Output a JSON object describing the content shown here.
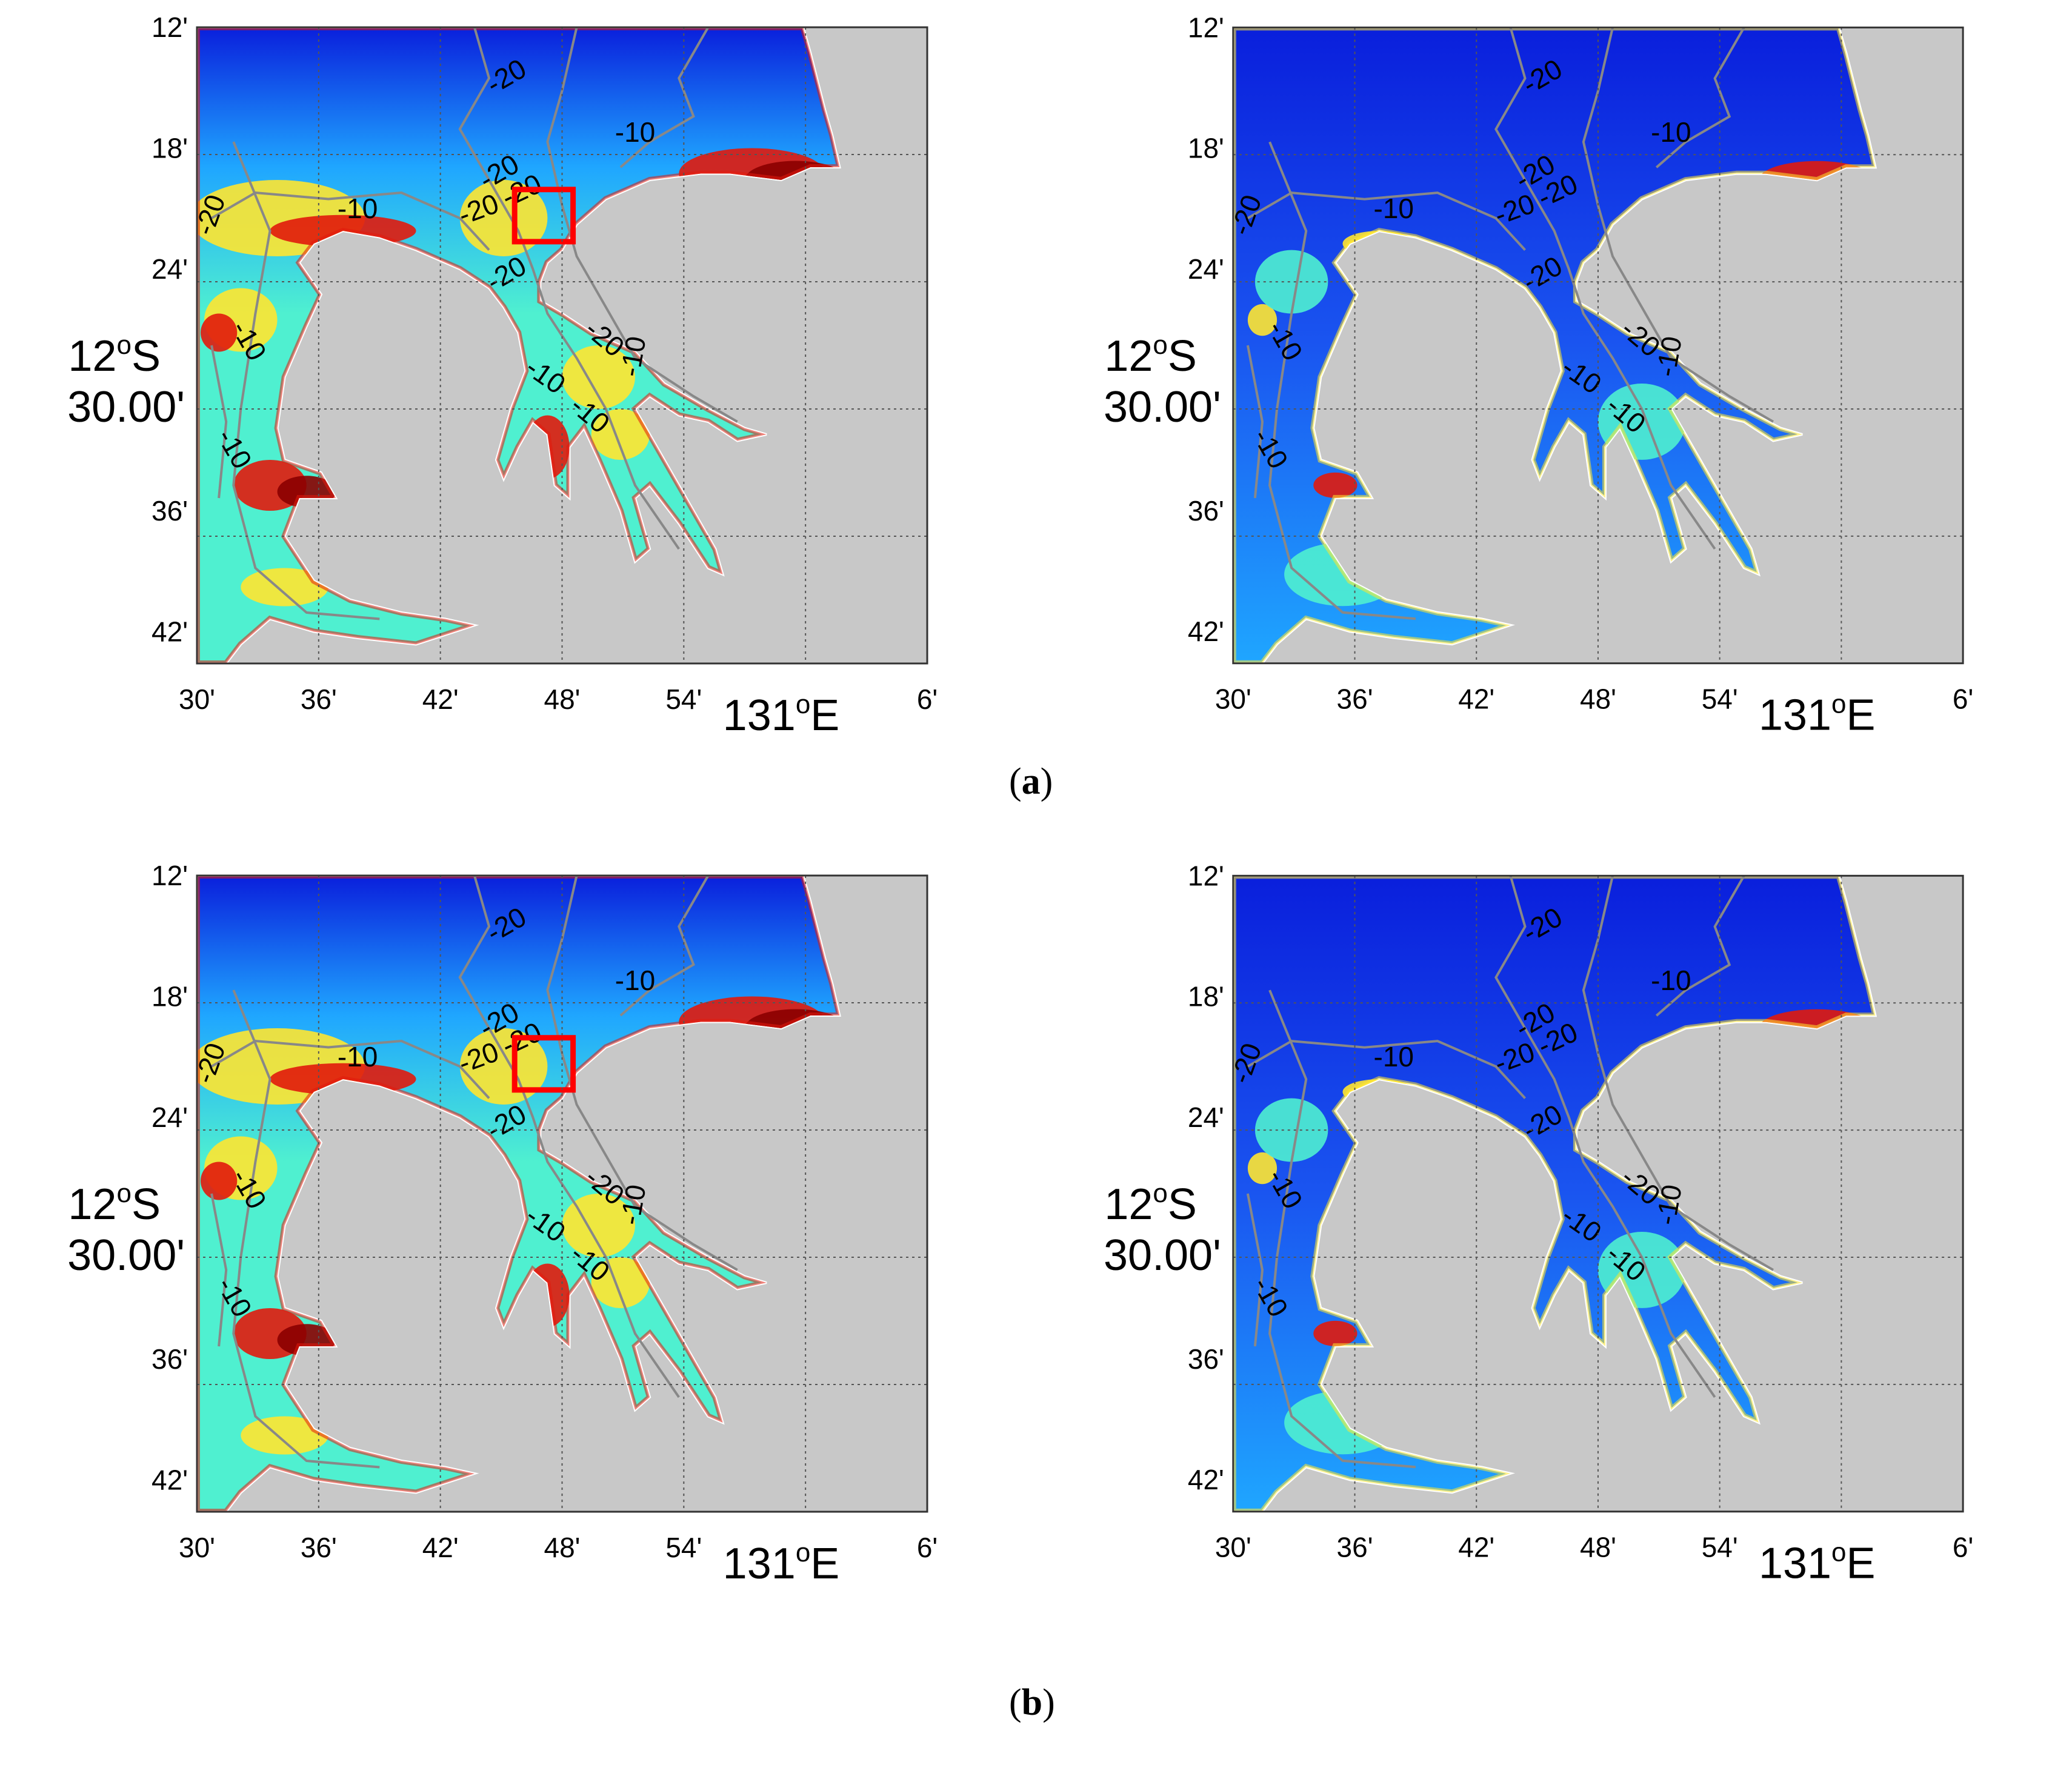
{
  "figure": {
    "panels": [
      {
        "id": "a-left",
        "row": "a",
        "side": "left",
        "tone": "high"
      },
      {
        "id": "a-right",
        "row": "a",
        "side": "right",
        "tone": "low"
      },
      {
        "id": "b-left",
        "row": "b",
        "side": "left",
        "tone": "high"
      },
      {
        "id": "b-right",
        "row": "b",
        "side": "right",
        "tone": "low"
      }
    ],
    "row_captions": [
      "a",
      "b"
    ],
    "y_ticks": [
      "12'",
      "18'",
      "24'",
      "30.00'",
      "36'",
      "42'"
    ],
    "y_center_label": "12",
    "y_center_sup": "o",
    "y_center_suffix": "S",
    "x_ticks": [
      "30'",
      "36'",
      "42'",
      "48'",
      "54'",
      "131",
      "6'"
    ],
    "x_center_sup": "o",
    "x_center_suffix": "E",
    "contour_labels": [
      "-20",
      "-10",
      "-20",
      "-20",
      "-20",
      "-10",
      "-20",
      "-10",
      "-20",
      "-10",
      "-10",
      "-10",
      "-20",
      "-10"
    ],
    "colors": {
      "land": "#c8c8c8",
      "deep": "#0a1fdc",
      "mid": "#1fa6ff",
      "shallow": "#4ff0d0",
      "yellow": "#ffe630",
      "red": "#e11a0c",
      "darkred": "#8b0000",
      "contour": "#888888",
      "highlight_box": "#ff0000"
    }
  }
}
